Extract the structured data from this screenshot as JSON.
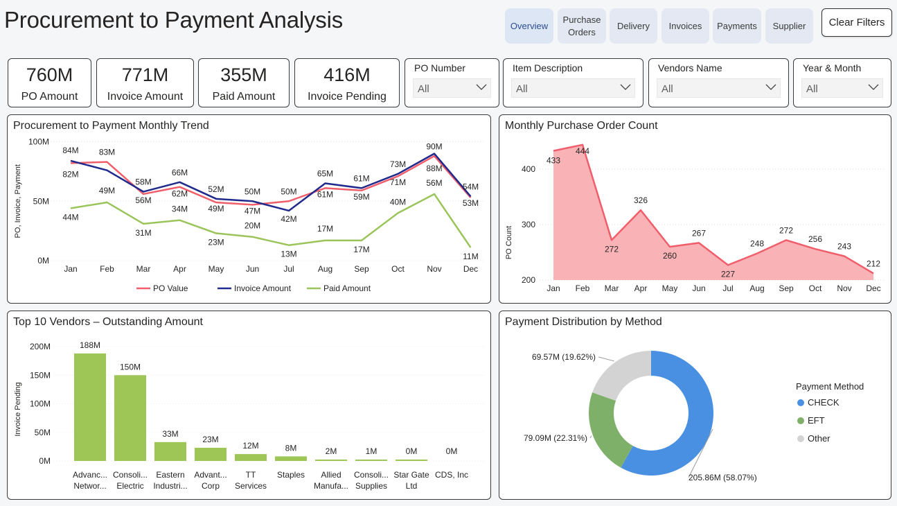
{
  "page": {
    "title": "Procurement to Payment Analysis"
  },
  "nav": {
    "overview": "Overview",
    "purchase_orders_l1": "Purchase",
    "purchase_orders_l2": "Orders",
    "delivery": "Delivery",
    "invoices": "Invoices",
    "payments": "Payments",
    "supplier": "Supplier",
    "clear_filters": "Clear Filters"
  },
  "kpis": [
    {
      "value": "760M",
      "label": "PO Amount"
    },
    {
      "value": "771M",
      "label": "Invoice Amount"
    },
    {
      "value": "355M",
      "label": "Paid Amount"
    },
    {
      "value": "416M",
      "label": "Invoice Pending"
    }
  ],
  "slicers": [
    {
      "label": "PO Number",
      "value": "All"
    },
    {
      "label": "Item Description",
      "value": "All"
    },
    {
      "label": "Vendors Name",
      "value": "All"
    },
    {
      "label": "Year & Month",
      "value": "All"
    }
  ],
  "colors": {
    "po_value": "#ef5e6a",
    "invoice_amount": "#1f2a8c",
    "paid_amount": "#9bc45a",
    "po_count_line": "#ef5e6a",
    "po_count_fill": "#f9b3b7",
    "vendor_bar": "#9dc656",
    "check": "#4a90e2",
    "eft": "#7fb069",
    "other": "#d3d3d3"
  },
  "chart_data": [
    {
      "id": "trend",
      "type": "line",
      "title": "Procurement to Payment Monthly Trend",
      "ylabel": "PO, Invoice, Payment",
      "xlabel": "",
      "x": [
        "Jan",
        "Feb",
        "Mar",
        "Apr",
        "May",
        "Jun",
        "Jul",
        "Aug",
        "Sep",
        "Oct",
        "Nov",
        "Dec"
      ],
      "ylim": [
        0,
        100
      ],
      "yticks": [
        "0M",
        "50M",
        "100M"
      ],
      "series": [
        {
          "name": "PO Value",
          "values": [
            82,
            83,
            56,
            62,
            49,
            47,
            50,
            61,
            59,
            71,
            88,
            53
          ]
        },
        {
          "name": "Invoice Amount",
          "values": [
            84,
            76,
            58,
            66,
            52,
            50,
            42,
            65,
            61,
            73,
            90,
            54
          ]
        },
        {
          "name": "Paid Amount",
          "values": [
            44,
            49,
            31,
            34,
            23,
            20,
            13,
            17,
            17,
            40,
            56,
            11
          ]
        }
      ],
      "labels": {
        "po_value": [
          "82M",
          "83M",
          "56M",
          "62M",
          "49M",
          "47M",
          "50M",
          "61M",
          "59M",
          "71M",
          "88M",
          "53M"
        ],
        "invoice_amount": [
          "84M",
          "",
          "58M",
          "66M",
          "52M",
          "50M",
          "42M",
          "65M",
          "61M",
          "73M",
          "90M",
          "54M"
        ],
        "paid_amount": [
          "44M",
          "49M",
          "31M",
          "34M",
          "23M",
          "20M",
          "13M",
          "17M",
          "17M",
          "40M",
          "56M",
          "11M"
        ]
      },
      "legend": "bottom"
    },
    {
      "id": "po_count",
      "type": "area",
      "title": "Monthly Purchase Order Count",
      "ylabel": "PO Count",
      "xlabel": "",
      "x": [
        "Jan",
        "Feb",
        "Mar",
        "Apr",
        "May",
        "Jun",
        "Jul",
        "Aug",
        "Sep",
        "Oct",
        "Nov",
        "Dec"
      ],
      "values": [
        433,
        444,
        272,
        326,
        260,
        267,
        227,
        248,
        272,
        256,
        243,
        212
      ],
      "ylim": [
        200,
        460
      ],
      "yticks": [
        200,
        300,
        400
      ]
    },
    {
      "id": "vendors",
      "type": "bar",
      "title": "Top 10 Vendors – Outstanding Amount",
      "ylabel": "Invoice Pending",
      "xlabel": "",
      "categories": [
        [
          "Advanc...",
          "Networ..."
        ],
        [
          "Consoli...",
          "Electric"
        ],
        [
          "Eastern",
          "Industri..."
        ],
        [
          "Advant...",
          "Corp"
        ],
        [
          "TT",
          "Services"
        ],
        [
          "Staples"
        ],
        [
          "Allied",
          "Manufa..."
        ],
        [
          "Consoli...",
          "Supplies"
        ],
        [
          "Star Gate",
          "Ltd"
        ],
        [
          "CDS, Inc"
        ]
      ],
      "values": [
        188,
        150,
        33,
        23,
        12,
        8,
        2,
        1,
        0.3,
        0
      ],
      "data_labels": [
        "188M",
        "150M",
        "33M",
        "23M",
        "12M",
        "8M",
        "2M",
        "1M",
        "0M",
        "0M"
      ],
      "ylim": [
        0,
        200
      ],
      "yticks": [
        "0M",
        "50M",
        "100M",
        "150M",
        "200M"
      ]
    },
    {
      "id": "payment_method",
      "type": "pie",
      "title": "Payment Distribution by Method",
      "legend_title": "Payment Method",
      "slices": [
        {
          "name": "CHECK",
          "value": 205.86,
          "label": "205.86M (58.07%)"
        },
        {
          "name": "EFT",
          "value": 79.09,
          "label": "79.09M (22.31%)"
        },
        {
          "name": "Other",
          "value": 69.57,
          "label": "69.57M (19.62%)"
        }
      ]
    }
  ]
}
